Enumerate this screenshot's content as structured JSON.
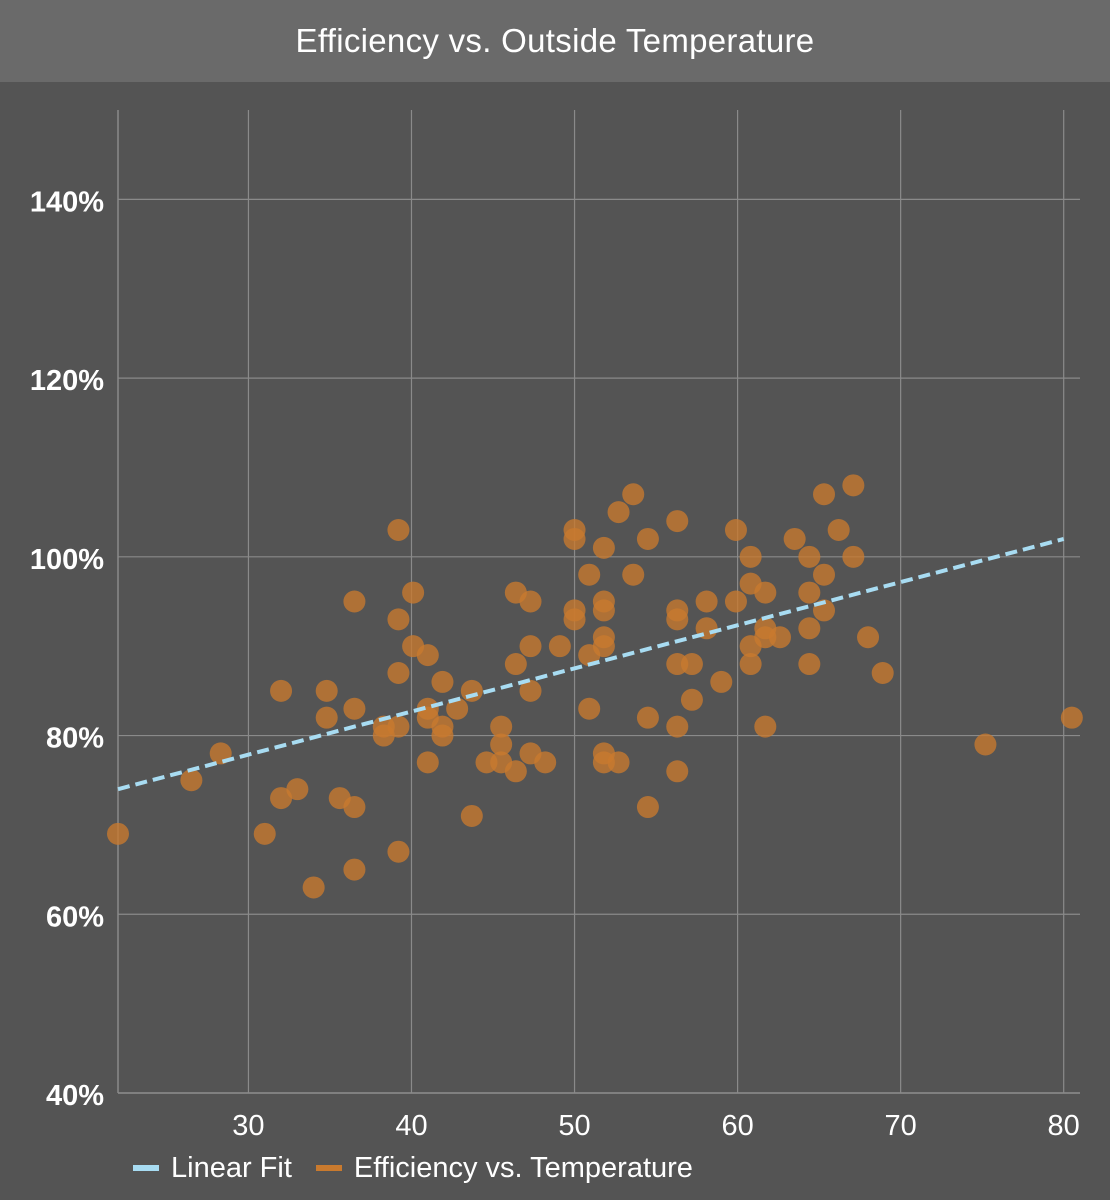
{
  "chart_data": {
    "type": "scatter",
    "title": "Efficiency vs. Outside Temperature",
    "xlim": [
      22,
      81
    ],
    "ylim": [
      40,
      150
    ],
    "x_ticks": [
      30,
      40,
      50,
      60,
      70,
      80
    ],
    "y_ticks": [
      40,
      60,
      80,
      100,
      120,
      140
    ],
    "x_tick_labels": [
      "30",
      "40",
      "50",
      "60",
      "70",
      "80"
    ],
    "y_tick_labels": [
      "40%",
      "60%",
      "80%",
      "100%",
      "120%",
      "140%"
    ],
    "grid": true,
    "legend_position": "bottom-left",
    "colors": {
      "points": "#c97a2e",
      "fit": "#a8dcf2",
      "grid": "#8a8a8a",
      "background": "#545454"
    },
    "series": [
      {
        "name": "Linear Fit",
        "kind": "line",
        "dashed": true,
        "x": [
          22,
          80
        ],
        "y": [
          74,
          102
        ]
      },
      {
        "name": "Efficiency vs. Temperature",
        "kind": "scatter",
        "points": [
          [
            22,
            69
          ],
          [
            26.5,
            75
          ],
          [
            28.3,
            78
          ],
          [
            31,
            69
          ],
          [
            32,
            85
          ],
          [
            32,
            73
          ],
          [
            33,
            74
          ],
          [
            34,
            63
          ],
          [
            34.8,
            85
          ],
          [
            34.8,
            82
          ],
          [
            35.6,
            73
          ],
          [
            36.5,
            95
          ],
          [
            36.5,
            83
          ],
          [
            36.5,
            72
          ],
          [
            36.5,
            65
          ],
          [
            38.3,
            80
          ],
          [
            38.3,
            81
          ],
          [
            39.2,
            103
          ],
          [
            39.2,
            93
          ],
          [
            39.2,
            87
          ],
          [
            39.2,
            81
          ],
          [
            39.2,
            67
          ],
          [
            40.1,
            96
          ],
          [
            40.1,
            90
          ],
          [
            41,
            89
          ],
          [
            41,
            83
          ],
          [
            41,
            82
          ],
          [
            41,
            77
          ],
          [
            41.9,
            86
          ],
          [
            41.9,
            81
          ],
          [
            41.9,
            80
          ],
          [
            42.8,
            83
          ],
          [
            43.7,
            85
          ],
          [
            43.7,
            71
          ],
          [
            44.6,
            77
          ],
          [
            45.5,
            81
          ],
          [
            45.5,
            79
          ],
          [
            45.5,
            77
          ],
          [
            46.4,
            96
          ],
          [
            46.4,
            88
          ],
          [
            46.4,
            76
          ],
          [
            47.3,
            95
          ],
          [
            47.3,
            90
          ],
          [
            47.3,
            85
          ],
          [
            47.3,
            78
          ],
          [
            48.2,
            77
          ],
          [
            49.1,
            90
          ],
          [
            50,
            103
          ],
          [
            50,
            102
          ],
          [
            50,
            94
          ],
          [
            50,
            93
          ],
          [
            50.9,
            98
          ],
          [
            50.9,
            89
          ],
          [
            50.9,
            83
          ],
          [
            51.8,
            101
          ],
          [
            51.8,
            95
          ],
          [
            51.8,
            94
          ],
          [
            51.8,
            91
          ],
          [
            51.8,
            90
          ],
          [
            51.8,
            78
          ],
          [
            51.8,
            77
          ],
          [
            52.7,
            105
          ],
          [
            52.7,
            77
          ],
          [
            53.6,
            107
          ],
          [
            53.6,
            98
          ],
          [
            54.5,
            102
          ],
          [
            54.5,
            82
          ],
          [
            54.5,
            72
          ],
          [
            56.3,
            104
          ],
          [
            56.3,
            94
          ],
          [
            56.3,
            93
          ],
          [
            56.3,
            88
          ],
          [
            56.3,
            81
          ],
          [
            56.3,
            76
          ],
          [
            57.2,
            88
          ],
          [
            57.2,
            84
          ],
          [
            58.1,
            95
          ],
          [
            58.1,
            92
          ],
          [
            59,
            86
          ],
          [
            59.9,
            103
          ],
          [
            59.9,
            95
          ],
          [
            60.8,
            100
          ],
          [
            60.8,
            97
          ],
          [
            60.8,
            90
          ],
          [
            60.8,
            88
          ],
          [
            61.7,
            96
          ],
          [
            61.7,
            92
          ],
          [
            61.7,
            91
          ],
          [
            61.7,
            81
          ],
          [
            62.6,
            91
          ],
          [
            63.5,
            102
          ],
          [
            64.4,
            100
          ],
          [
            64.4,
            96
          ],
          [
            64.4,
            92
          ],
          [
            64.4,
            88
          ],
          [
            65.3,
            107
          ],
          [
            65.3,
            98
          ],
          [
            65.3,
            94
          ],
          [
            66.2,
            103
          ],
          [
            67.1,
            108
          ],
          [
            67.1,
            100
          ],
          [
            68,
            91
          ],
          [
            68.9,
            87
          ],
          [
            75.2,
            79
          ],
          [
            80.5,
            82
          ]
        ]
      }
    ]
  }
}
